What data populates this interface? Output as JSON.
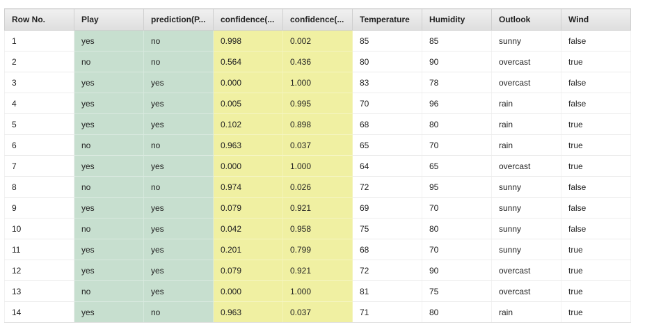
{
  "table": {
    "headers": [
      "Row No.",
      "Play",
      "prediction(P...",
      "confidence(...",
      "confidence(...",
      "Temperature",
      "Humidity",
      "Outlook",
      "Wind"
    ],
    "rows": [
      [
        "1",
        "yes",
        "no",
        "0.998",
        "0.002",
        "85",
        "85",
        "sunny",
        "false"
      ],
      [
        "2",
        "no",
        "no",
        "0.564",
        "0.436",
        "80",
        "90",
        "overcast",
        "true"
      ],
      [
        "3",
        "yes",
        "yes",
        "0.000",
        "1.000",
        "83",
        "78",
        "overcast",
        "false"
      ],
      [
        "4",
        "yes",
        "yes",
        "0.005",
        "0.995",
        "70",
        "96",
        "rain",
        "false"
      ],
      [
        "5",
        "yes",
        "yes",
        "0.102",
        "0.898",
        "68",
        "80",
        "rain",
        "true"
      ],
      [
        "6",
        "no",
        "no",
        "0.963",
        "0.037",
        "65",
        "70",
        "rain",
        "true"
      ],
      [
        "7",
        "yes",
        "yes",
        "0.000",
        "1.000",
        "64",
        "65",
        "overcast",
        "true"
      ],
      [
        "8",
        "no",
        "no",
        "0.974",
        "0.026",
        "72",
        "95",
        "sunny",
        "false"
      ],
      [
        "9",
        "yes",
        "yes",
        "0.079",
        "0.921",
        "69",
        "70",
        "sunny",
        "false"
      ],
      [
        "10",
        "no",
        "yes",
        "0.042",
        "0.958",
        "75",
        "80",
        "sunny",
        "false"
      ],
      [
        "11",
        "yes",
        "yes",
        "0.201",
        "0.799",
        "68",
        "70",
        "sunny",
        "true"
      ],
      [
        "12",
        "yes",
        "yes",
        "0.079",
        "0.921",
        "72",
        "90",
        "overcast",
        "true"
      ],
      [
        "13",
        "no",
        "yes",
        "0.000",
        "1.000",
        "81",
        "75",
        "overcast",
        "true"
      ],
      [
        "14",
        "yes",
        "no",
        "0.963",
        "0.037",
        "71",
        "80",
        "rain",
        "true"
      ]
    ]
  },
  "colors": {
    "label_column_bg": "#c7dfcf",
    "confidence_column_bg": "#f0f0a2",
    "header_bg": "#e4e4e4"
  }
}
